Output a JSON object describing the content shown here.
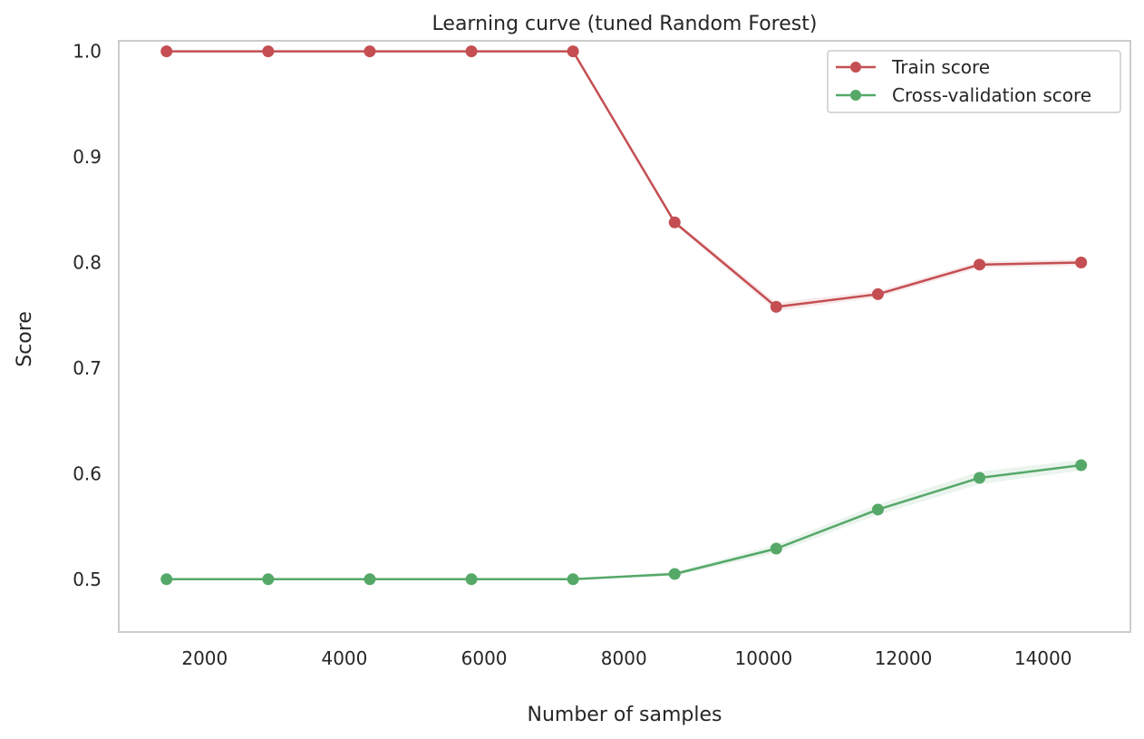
{
  "chart_data": {
    "type": "line",
    "title": "Learning curve (tuned Random Forest)",
    "xlabel": "Number of samples",
    "ylabel": "Score",
    "xlim": [
      770,
      15250
    ],
    "ylim": [
      0.45,
      1.01
    ],
    "xticks": [
      2000,
      4000,
      6000,
      8000,
      10000,
      12000,
      14000
    ],
    "xtick_labels": [
      "2000",
      "4000",
      "6000",
      "8000",
      "10000",
      "12000",
      "14000"
    ],
    "yticks": [
      0.5,
      0.6,
      0.7,
      0.8,
      0.9,
      1.0
    ],
    "ytick_labels": [
      "0.5",
      "0.6",
      "0.7",
      "0.8",
      "0.9",
      "1.0"
    ],
    "grid": false,
    "legend_position": "top-right",
    "x": [
      1454,
      2909,
      4363,
      5818,
      7272,
      8727,
      10181,
      11636,
      13090,
      14545
    ],
    "series": [
      {
        "name": "Train score",
        "color": "#c44e52",
        "values": [
          1.0,
          1.0,
          1.0,
          1.0,
          1.0,
          0.838,
          0.758,
          0.77,
          0.798,
          0.8
        ],
        "band": [
          0,
          0,
          0,
          0,
          0,
          0.002,
          0.004,
          0.003,
          0.003,
          0.003
        ]
      },
      {
        "name": "Cross-validation score",
        "color": "#55a868",
        "values": [
          0.5,
          0.5,
          0.5,
          0.5,
          0.5,
          0.505,
          0.529,
          0.566,
          0.596,
          0.608
        ],
        "band": [
          0,
          0,
          0,
          0,
          0,
          0.002,
          0.004,
          0.005,
          0.006,
          0.005
        ]
      }
    ]
  }
}
